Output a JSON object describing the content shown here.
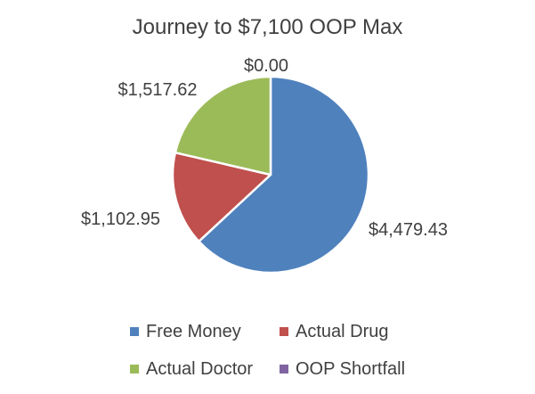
{
  "chart_data": {
    "type": "pie",
    "title": "Journey to $7,100 OOP Max",
    "slices": [
      {
        "name": "Free Money",
        "value": 4479.43,
        "label": "$4,479.43",
        "color": "#4F81BD"
      },
      {
        "name": "Actual Drug",
        "value": 1102.95,
        "label": "$1,102.95",
        "color": "#C0504D"
      },
      {
        "name": "Actual Doctor",
        "value": 1517.62,
        "label": "$1,517.62",
        "color": "#9BBB59"
      },
      {
        "name": "OOP Shortfall",
        "value": 0.0,
        "label": "$0.00",
        "color": "#8064A2"
      }
    ],
    "legend_position": "bottom"
  }
}
